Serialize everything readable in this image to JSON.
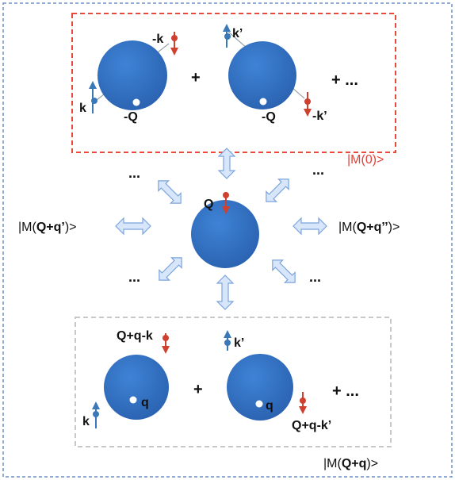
{
  "colors": {
    "sphere": "#2f6fc4",
    "spin_up": "#3b78b8",
    "spin_down": "#d0402f",
    "top_box": "#e84a3c",
    "bottom_box": "#c8c8c8",
    "outer_box": "#6d8fc9",
    "double_arrow_fill": "#d7e6fb",
    "double_arrow_stroke": "#7ba4dc"
  },
  "top_group": {
    "state_label": "|M(0)>",
    "left_sphere": {
      "up_label": "k",
      "down_label": "-k",
      "hole_label": "-Q"
    },
    "plus": "+",
    "right_sphere": {
      "up_label": "k’",
      "down_label": "-k’",
      "hole_label": "-Q"
    },
    "ellipsis": "+ ..."
  },
  "center": {
    "label": "Q",
    "dots_top_left": "...",
    "dots_top_right": "...",
    "dots_bottom_left": "...",
    "dots_bottom_right": "...",
    "left_state_prefix": "|M(",
    "left_state_bold": "Q+q’",
    "left_state_suffix": ")>",
    "right_state_prefix": "|M(",
    "right_state_bold": "Q+q’’",
    "right_state_suffix": ")>"
  },
  "bottom_group": {
    "left_sphere": {
      "down_label": "Q+q-k",
      "up_label": "k",
      "hole_label": "q"
    },
    "plus": "+",
    "right_sphere": {
      "up_label": "k’",
      "down_label": "Q+q-k’",
      "hole_label": "q"
    },
    "ellipsis": "+ ...",
    "state_prefix": "|M(",
    "state_bold": "Q+q",
    "state_suffix": ")>"
  }
}
